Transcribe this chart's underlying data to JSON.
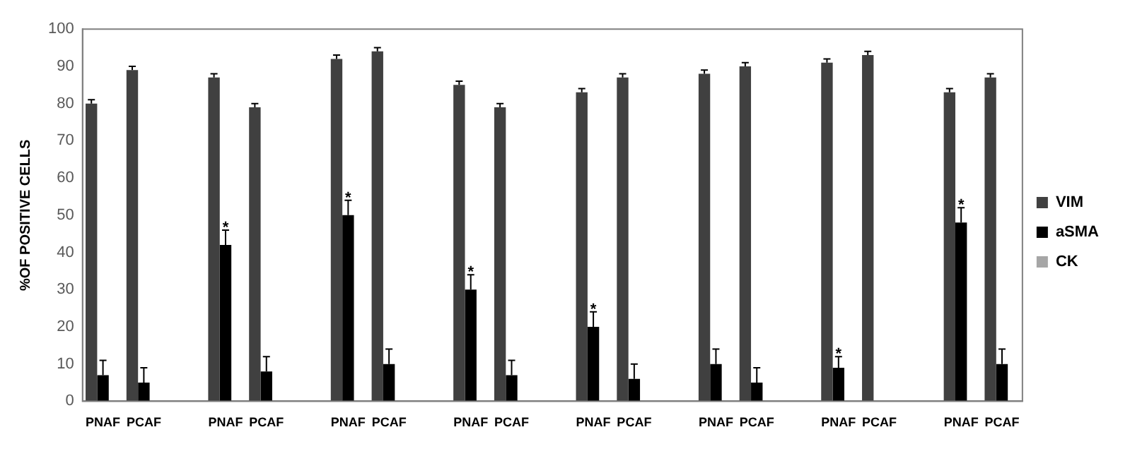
{
  "chart_data": {
    "type": "bar",
    "ylabel": "%OF POSITIVE CELLS",
    "categories": [
      "PNAF",
      "PCAF",
      null,
      "PNAF",
      "PCAF",
      null,
      "PNAF",
      "PCAF",
      null,
      "PNAF",
      "PCAF",
      null,
      "PNAF",
      "PCAF",
      null,
      "PNAF",
      "PCAF",
      null,
      "PNAF",
      "PCAF",
      null,
      "PNAF",
      "PCAF"
    ],
    "series": [
      {
        "name": "VIM",
        "color": "#404040",
        "values": [
          80,
          89,
          null,
          87,
          79,
          null,
          92,
          94,
          null,
          85,
          79,
          null,
          83,
          87,
          null,
          88,
          90,
          null,
          91,
          93,
          null,
          83,
          87
        ],
        "errors": [
          [
            80,
            81
          ],
          [
            89,
            90
          ],
          null,
          [
            87,
            88
          ],
          [
            79,
            80
          ],
          null,
          [
            92,
            93
          ],
          [
            94,
            95
          ],
          null,
          [
            85,
            86
          ],
          [
            79,
            80
          ],
          null,
          [
            83,
            84
          ],
          [
            87,
            88
          ],
          null,
          [
            88,
            89
          ],
          [
            90,
            91
          ],
          null,
          [
            91,
            92
          ],
          [
            93,
            94
          ],
          null,
          [
            83,
            84
          ],
          [
            87,
            88
          ]
        ]
      },
      {
        "name": "aSMA",
        "color": "#000000",
        "values": [
          7,
          5,
          null,
          42,
          8,
          null,
          50,
          10,
          null,
          30,
          7,
          null,
          20,
          6,
          null,
          10,
          5,
          null,
          9,
          0,
          null,
          48,
          10
        ],
        "errors": [
          [
            7,
            11
          ],
          [
            5,
            9
          ],
          null,
          [
            42,
            46
          ],
          [
            8,
            12
          ],
          null,
          [
            50,
            54
          ],
          [
            10,
            14
          ],
          null,
          [
            30,
            34
          ],
          [
            7,
            11
          ],
          null,
          [
            20,
            24
          ],
          [
            6,
            10
          ],
          null,
          [
            10,
            14
          ],
          [
            5,
            9
          ],
          null,
          [
            9,
            12
          ],
          null,
          null,
          [
            48,
            52
          ],
          [
            10,
            14
          ]
        ],
        "value_labels": [
          null,
          null,
          null,
          "*",
          null,
          null,
          "*",
          null,
          null,
          "*",
          null,
          null,
          "*",
          null,
          null,
          null,
          null,
          null,
          "*",
          null,
          null,
          "*",
          null
        ]
      },
      {
        "name": "CK",
        "color": "#a6a6a6",
        "values": [
          0,
          0,
          null,
          0,
          0,
          null,
          0,
          0,
          null,
          0,
          0,
          null,
          0,
          0,
          null,
          0,
          0,
          null,
          0,
          0,
          null,
          0,
          0
        ]
      }
    ],
    "ylim": [
      0,
      100
    ],
    "yticks": [
      0,
      10,
      20,
      30,
      40,
      50,
      60,
      70,
      80,
      90,
      100
    ],
    "grid": false,
    "legend": "right"
  }
}
